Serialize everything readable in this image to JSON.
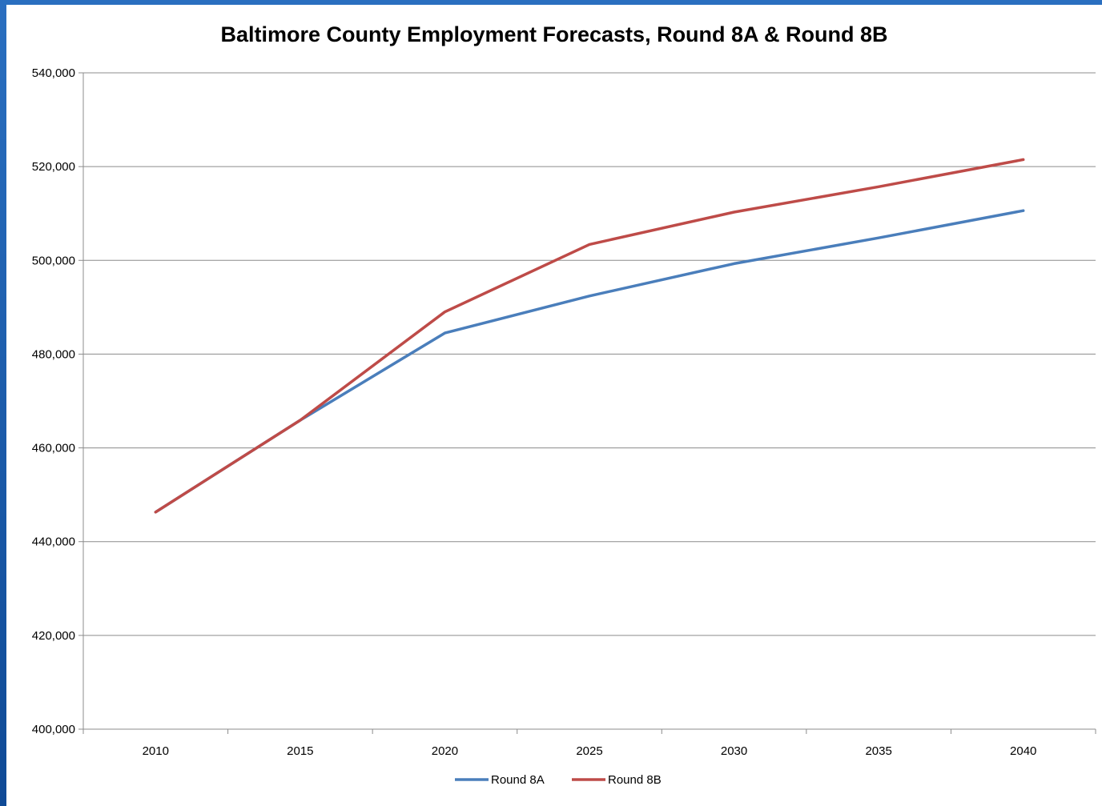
{
  "chart_data": {
    "type": "line",
    "title": "Baltimore County Employment Forecasts, Round 8A & Round 8B",
    "xlabel": "",
    "ylabel": "",
    "categories": [
      "2010",
      "2015",
      "2020",
      "2025",
      "2030",
      "2035",
      "2040"
    ],
    "y_tick_labels": [
      "400,000",
      "420,000",
      "440,000",
      "460,000",
      "480,000",
      "500,000",
      "520,000",
      "540,000"
    ],
    "ylim": [
      400000,
      540000
    ],
    "grid": "horizontal",
    "legend_position": "bottom",
    "series": [
      {
        "name": "Round 8A",
        "color": "#4a7ebb",
        "values": [
          446300,
          465900,
          484500,
          492400,
          499300,
          504800,
          510600
        ]
      },
      {
        "name": "Round 8B",
        "color": "#be4b48",
        "values": [
          446300,
          465900,
          489000,
          503400,
          510300,
          515700,
          521500
        ]
      }
    ]
  }
}
